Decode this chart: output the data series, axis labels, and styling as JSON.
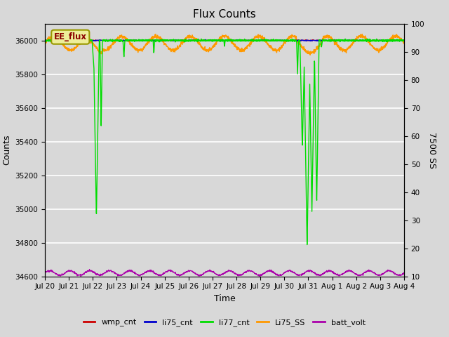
{
  "title": "Flux Counts",
  "xlabel": "Time",
  "ylabel_left": "Counts",
  "ylabel_right": "7500 SS",
  "bg_color": "#d8d8d8",
  "plot_bg_color": "#d8d8d8",
  "ylim_left": [
    34600,
    36100
  ],
  "ylim_right": [
    10,
    100
  ],
  "yticks_left": [
    34600,
    34800,
    35000,
    35200,
    35400,
    35600,
    35800,
    36000
  ],
  "yticks_right": [
    10,
    20,
    30,
    40,
    50,
    60,
    70,
    80,
    90,
    100
  ],
  "n_points": 2000,
  "date_start": 0,
  "date_end": 15,
  "colors": {
    "wmp_cnt": "#cc0000",
    "li75_cnt": "#0000cc",
    "li77_cnt": "#00dd00",
    "Li75_SS": "#ff9900",
    "batt_volt": "#aa00aa"
  },
  "annotation_text": "EE_flux",
  "xtick_labels": [
    "Jul 20",
    "Jul 21",
    "Jul 22",
    "Jul 23",
    "Jul 24",
    "Jul 25",
    "Jul 26",
    "Jul 27",
    "Jul 28",
    "Jul 29",
    "Jul 30",
    "Jul 31",
    "Aug 1",
    "Aug 2",
    "Aug 3",
    "Aug 4"
  ]
}
